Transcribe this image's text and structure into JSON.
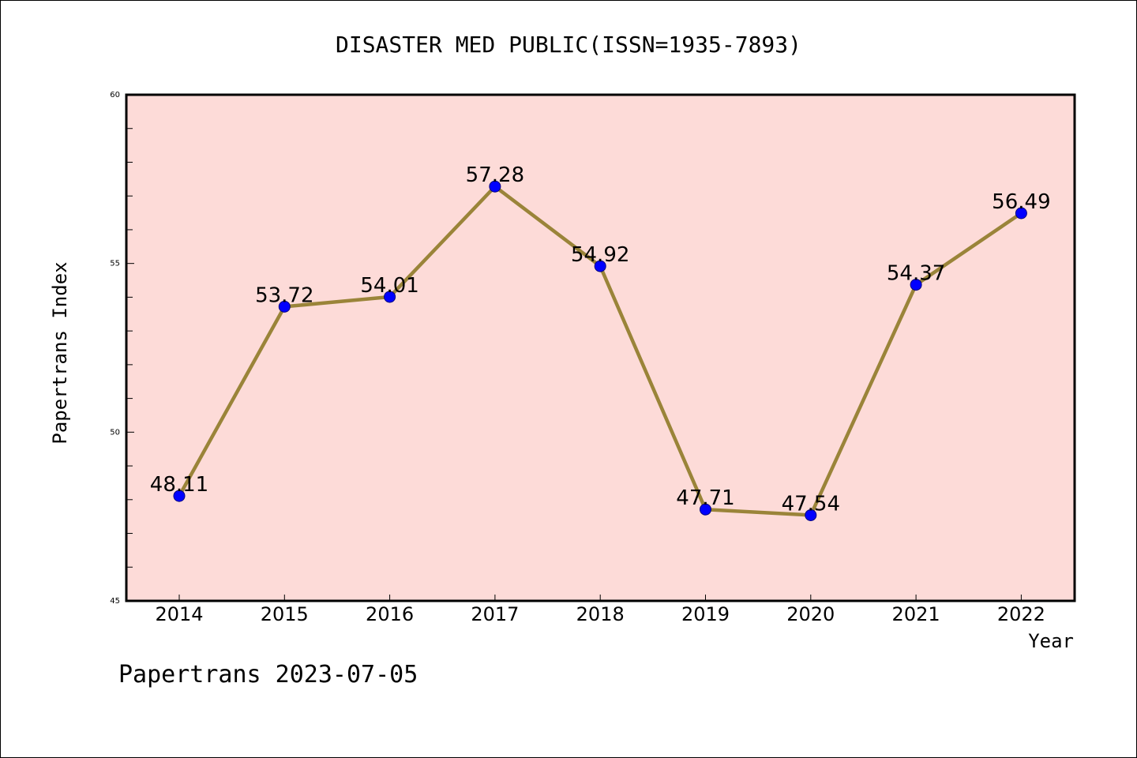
{
  "chart_data": {
    "type": "line",
    "title": "DISASTER MED PUBLIC(ISSN=1935-7893)",
    "xlabel": "Year",
    "ylabel": "Papertrans Index",
    "categories": [
      "2014",
      "2015",
      "2016",
      "2017",
      "2018",
      "2019",
      "2020",
      "2021",
      "2022"
    ],
    "values": [
      48.11,
      53.72,
      54.01,
      57.28,
      54.92,
      47.71,
      47.54,
      54.37,
      56.49
    ],
    "data_labels": [
      "48.11",
      "53.72",
      "54.01",
      "57.28",
      "54.92",
      "47.71",
      "47.54",
      "54.37",
      "56.49"
    ],
    "ylim": [
      45,
      60
    ],
    "y_ticks": [
      "45",
      "50",
      "55",
      "60"
    ],
    "grid": false,
    "footer": "Papertrans 2023-07-05",
    "colors": {
      "plot_background": "#fddbd8",
      "line": "#9a8439",
      "marker": "#0000ff",
      "axis": "#000000"
    }
  }
}
